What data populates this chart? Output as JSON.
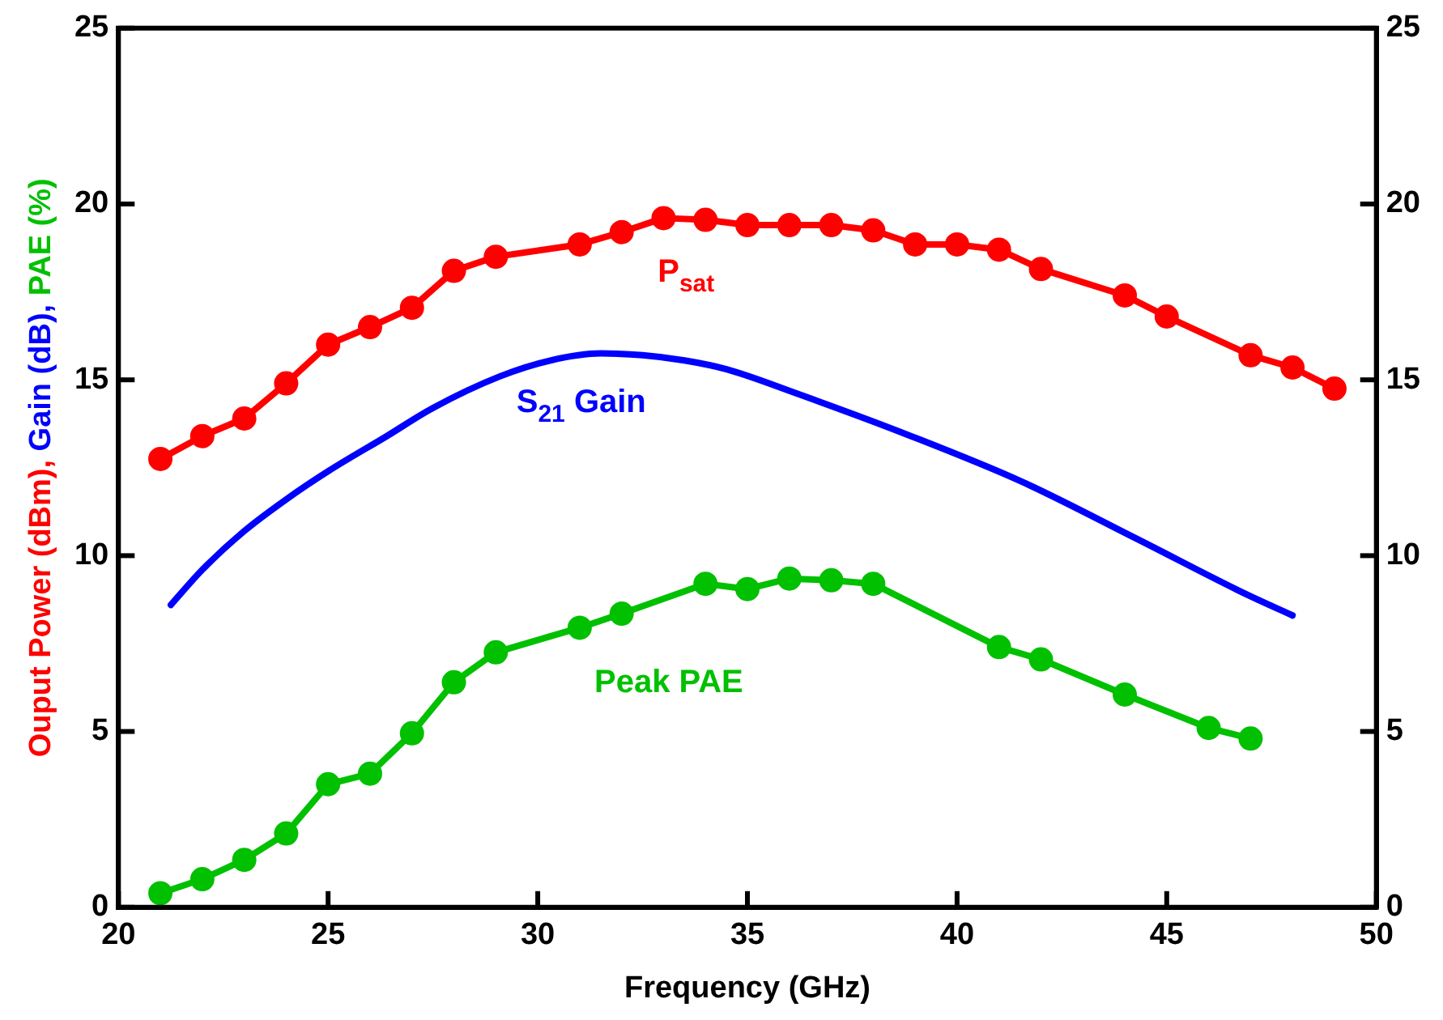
{
  "chart_data": {
    "type": "line",
    "xlabel": "Frequency (GHz)",
    "ylabel": "Ouput Power (dBm), Gain (dB), PAE (%)",
    "xlim": [
      20,
      50
    ],
    "xticks": [
      20,
      25,
      30,
      35,
      40,
      45,
      50
    ],
    "ylim": [
      0,
      25
    ],
    "yticks": [
      0,
      5,
      10,
      15,
      20,
      25
    ],
    "y2lim": [
      0,
      25
    ],
    "y2ticks": [
      0,
      5,
      10,
      15,
      20,
      25
    ],
    "grid": false,
    "legend": false,
    "line_style": "solid",
    "series": [
      {
        "name": "P$_{sat}$",
        "color": "#ff0000",
        "marker": "circle",
        "x": [
          21,
          22,
          23,
          24,
          25,
          26,
          27,
          28,
          29,
          31,
          32,
          33,
          34,
          35,
          36,
          37,
          38,
          39,
          40,
          41,
          42,
          44,
          45,
          47,
          48,
          49
        ],
        "values": [
          12.75,
          13.4,
          13.9,
          14.9,
          16.0,
          16.5,
          17.05,
          18.1,
          18.5,
          18.85,
          19.2,
          19.6,
          19.55,
          19.4,
          19.4,
          19.4,
          19.25,
          18.85,
          18.85,
          18.7,
          18.15,
          17.4,
          16.8,
          15.7,
          15.35,
          14.75
        ]
      },
      {
        "name": "S$_{21}$ Gain",
        "color": "#0000ff",
        "marker": "none",
        "x": [
          21.25,
          22,
          23,
          24,
          25,
          26.4,
          27.5,
          29.1,
          30.3,
          31.5,
          32.5,
          33.5,
          34.5,
          36.2,
          38.9,
          41.55,
          44.25,
          46.9,
          48
        ],
        "values": [
          8.6,
          9.6,
          10.7,
          11.6,
          12.4,
          13.4,
          14.2,
          15.1,
          15.55,
          15.75,
          15.7,
          15.55,
          15.3,
          14.6,
          13.4,
          12.1,
          10.5,
          8.9,
          8.3
        ]
      },
      {
        "name": "Peak PAE",
        "color": "#00c000",
        "marker": "circle",
        "x": [
          21,
          22,
          23,
          24,
          25,
          26,
          27,
          28,
          29,
          31,
          32,
          34,
          35,
          36,
          37,
          38,
          41,
          42,
          44,
          46,
          47
        ],
        "values": [
          0.4,
          0.8,
          1.35,
          2.1,
          3.5,
          3.8,
          4.95,
          6.4,
          7.25,
          7.95,
          8.35,
          9.2,
          9.05,
          9.35,
          9.3,
          9.2,
          7.4,
          7.05,
          6.05,
          5.1,
          4.8
        ]
      }
    ]
  }
}
